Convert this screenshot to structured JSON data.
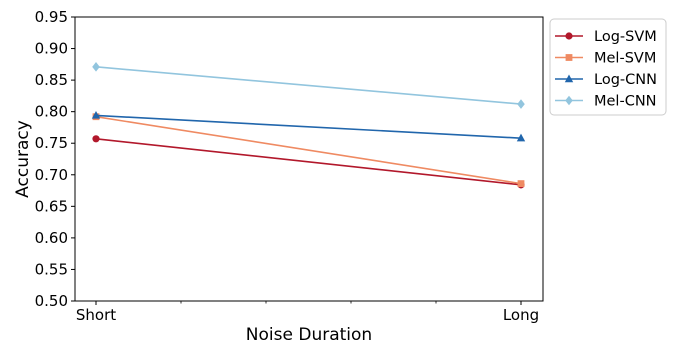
{
  "chart_data": {
    "type": "line",
    "xlabel": "Noise Duration",
    "ylabel": "Accuracy",
    "categories": [
      "Short",
      "Long"
    ],
    "ylim": [
      0.5,
      0.95
    ],
    "yticks": [
      "0.50",
      "0.55",
      "0.60",
      "0.65",
      "0.70",
      "0.75",
      "0.80",
      "0.85",
      "0.90",
      "0.95"
    ],
    "grid": false,
    "legend_position": "outside-top-right",
    "series": [
      {
        "name": "Log-SVM",
        "values": [
          0.757,
          0.684
        ],
        "color": "#b2182b",
        "marker": "circle"
      },
      {
        "name": "Mel-SVM",
        "values": [
          0.792,
          0.686
        ],
        "color": "#ef8a62",
        "marker": "square"
      },
      {
        "name": "Log-CNN",
        "values": [
          0.794,
          0.758
        ],
        "color": "#2166ac",
        "marker": "triangle"
      },
      {
        "name": "Mel-CNN",
        "values": [
          0.871,
          0.812
        ],
        "color": "#92c5de",
        "marker": "diamond"
      }
    ]
  }
}
